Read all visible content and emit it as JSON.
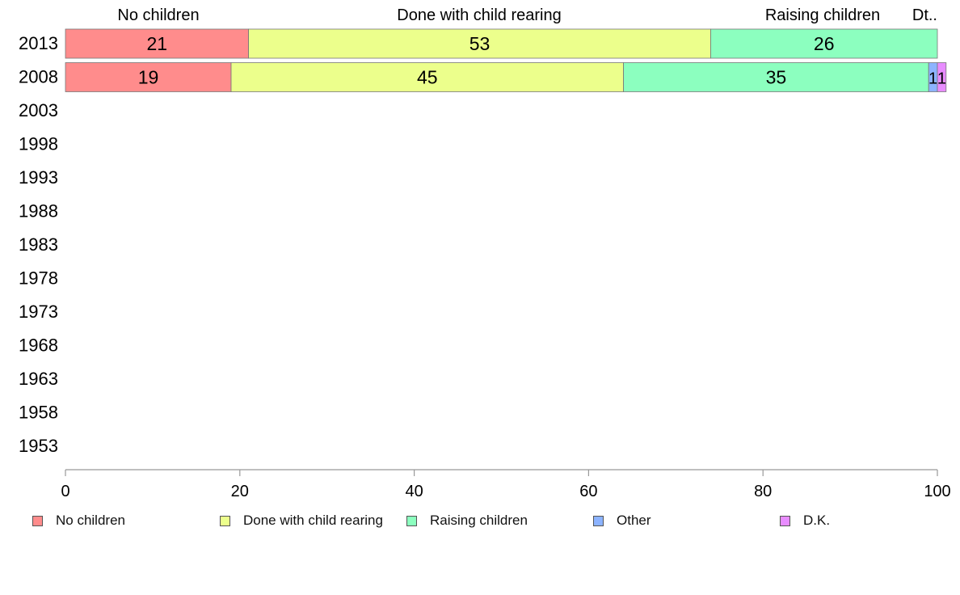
{
  "chart_data": {
    "type": "bar",
    "orientation": "horizontal",
    "stacked": true,
    "years": [
      "2013",
      "2008",
      "2003",
      "1998",
      "1993",
      "1988",
      "1983",
      "1978",
      "1973",
      "1968",
      "1963",
      "1958",
      "1953"
    ],
    "series": [
      {
        "name": "No children",
        "color": "#ff8c8c",
        "values": [
          21,
          19,
          null,
          null,
          null,
          null,
          null,
          null,
          null,
          null,
          null,
          null,
          null
        ]
      },
      {
        "name": "Done with child rearing",
        "color": "#ecff8c",
        "values": [
          53,
          45,
          null,
          null,
          null,
          null,
          null,
          null,
          null,
          null,
          null,
          null,
          null
        ]
      },
      {
        "name": "Raising children",
        "color": "#8cffbf",
        "values": [
          26,
          35,
          null,
          null,
          null,
          null,
          null,
          null,
          null,
          null,
          null,
          null,
          null
        ]
      },
      {
        "name": "Other",
        "color": "#8cb3ff",
        "values": [
          0,
          1,
          null,
          null,
          null,
          null,
          null,
          null,
          null,
          null,
          null,
          null,
          null
        ]
      },
      {
        "name": "D.K.",
        "color": "#e88cff",
        "values": [
          0,
          1,
          null,
          null,
          null,
          null,
          null,
          null,
          null,
          null,
          null,
          null,
          null
        ]
      }
    ],
    "top_labels": [
      "No children",
      "Done with child rearing",
      "Raising children",
      "Dt.."
    ],
    "xlim": [
      0,
      100
    ],
    "x_ticks": [
      "0",
      "20",
      "40",
      "60",
      "80",
      "100"
    ],
    "grid": false,
    "legend_position": "bottom"
  }
}
